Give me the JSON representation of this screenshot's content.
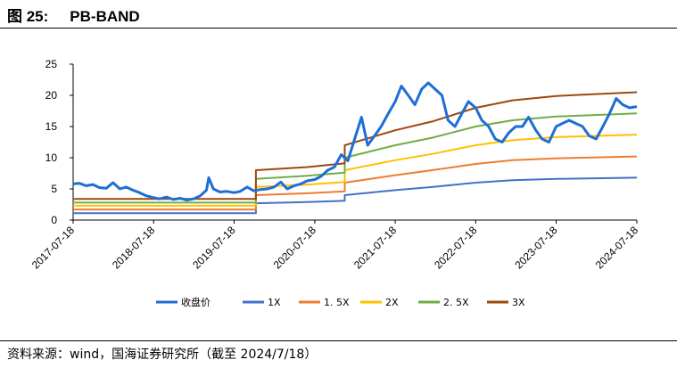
{
  "figure": {
    "label": "图 25:",
    "title": "PB-BAND",
    "source": "资料来源：wind，国海证券研究所（截至 2024/7/18）"
  },
  "chart_data": {
    "type": "line",
    "xlabel": "",
    "ylabel": "",
    "ylim": [
      0,
      25
    ],
    "yticks": [
      0,
      5,
      10,
      15,
      20,
      25
    ],
    "xlim": [
      "2017-07-18",
      "2024-07-18"
    ],
    "xticks": [
      "2017-07-18",
      "2018-07-18",
      "2019-07-18",
      "2020-07-18",
      "2021-07-18",
      "2022-07-18",
      "2023-07-18",
      "2024-07-18"
    ],
    "grid": false,
    "legend_position": "bottom",
    "series": [
      {
        "name": "收盘价",
        "color": "#1f6ed4",
        "width": 3,
        "points": [
          [
            "2017-07-18",
            5.8
          ],
          [
            "2017-08-15",
            5.9
          ],
          [
            "2017-09-15",
            5.5
          ],
          [
            "2017-10-15",
            5.7
          ],
          [
            "2017-11-15",
            5.2
          ],
          [
            "2017-12-15",
            5.1
          ],
          [
            "2018-01-15",
            6.0
          ],
          [
            "2018-02-15",
            5.0
          ],
          [
            "2018-03-15",
            5.3
          ],
          [
            "2018-04-15",
            4.8
          ],
          [
            "2018-05-15",
            4.4
          ],
          [
            "2018-06-15",
            3.9
          ],
          [
            "2018-07-18",
            3.6
          ],
          [
            "2018-08-15",
            3.4
          ],
          [
            "2018-09-15",
            3.7
          ],
          [
            "2018-10-15",
            3.3
          ],
          [
            "2018-11-15",
            3.5
          ],
          [
            "2018-12-15",
            3.2
          ],
          [
            "2019-01-15",
            3.4
          ],
          [
            "2019-02-15",
            3.9
          ],
          [
            "2019-03-15",
            4.8
          ],
          [
            "2019-03-25",
            6.8
          ],
          [
            "2019-04-15",
            5.0
          ],
          [
            "2019-05-15",
            4.5
          ],
          [
            "2019-06-15",
            4.6
          ],
          [
            "2019-07-18",
            4.4
          ],
          [
            "2019-08-15",
            4.6
          ],
          [
            "2019-09-15",
            5.3
          ],
          [
            "2019-10-15",
            4.7
          ],
          [
            "2019-11-15",
            4.9
          ],
          [
            "2019-12-15",
            5.0
          ],
          [
            "2020-01-15",
            5.3
          ],
          [
            "2020-02-15",
            6.1
          ],
          [
            "2020-03-15",
            5.0
          ],
          [
            "2020-04-15",
            5.5
          ],
          [
            "2020-05-15",
            5.8
          ],
          [
            "2020-06-15",
            6.3
          ],
          [
            "2020-07-18",
            6.5
          ],
          [
            "2020-08-15",
            7.0
          ],
          [
            "2020-09-15",
            8.0
          ],
          [
            "2020-10-15",
            8.5
          ],
          [
            "2020-11-15",
            10.5
          ],
          [
            "2020-12-15",
            9.5
          ],
          [
            "2021-01-15",
            13.0
          ],
          [
            "2021-02-15",
            16.5
          ],
          [
            "2021-03-15",
            12.0
          ],
          [
            "2021-04-15",
            13.5
          ],
          [
            "2021-05-15",
            15.0
          ],
          [
            "2021-06-15",
            17.0
          ],
          [
            "2021-07-18",
            19.0
          ],
          [
            "2021-08-15",
            21.5
          ],
          [
            "2021-09-15",
            20.0
          ],
          [
            "2021-10-15",
            18.5
          ],
          [
            "2021-11-15",
            21.0
          ],
          [
            "2021-12-15",
            22.0
          ],
          [
            "2022-01-15",
            21.0
          ],
          [
            "2022-02-15",
            20.0
          ],
          [
            "2022-03-15",
            16.0
          ],
          [
            "2022-04-15",
            15.0
          ],
          [
            "2022-05-15",
            17.0
          ],
          [
            "2022-06-15",
            19.0
          ],
          [
            "2022-07-18",
            18.0
          ],
          [
            "2022-08-15",
            16.0
          ],
          [
            "2022-09-15",
            15.0
          ],
          [
            "2022-10-15",
            13.0
          ],
          [
            "2022-11-15",
            12.5
          ],
          [
            "2022-12-15",
            14.0
          ],
          [
            "2023-01-15",
            15.0
          ],
          [
            "2023-02-15",
            15.0
          ],
          [
            "2023-03-15",
            16.5
          ],
          [
            "2023-04-15",
            14.5
          ],
          [
            "2023-05-15",
            13.0
          ],
          [
            "2023-06-15",
            12.5
          ],
          [
            "2023-07-18",
            15.0
          ],
          [
            "2023-08-15",
            15.5
          ],
          [
            "2023-09-15",
            16.0
          ],
          [
            "2023-10-15",
            15.5
          ],
          [
            "2023-11-15",
            15.0
          ],
          [
            "2023-12-15",
            13.5
          ],
          [
            "2024-01-15",
            13.0
          ],
          [
            "2024-02-15",
            15.0
          ],
          [
            "2024-03-15",
            17.0
          ],
          [
            "2024-04-15",
            19.5
          ],
          [
            "2024-05-15",
            18.5
          ],
          [
            "2024-06-15",
            18.0
          ],
          [
            "2024-07-18",
            18.2
          ]
        ]
      },
      {
        "name": "1X",
        "color": "#4472c4",
        "width": 2,
        "points": [
          [
            "2017-07-18",
            1.1
          ],
          [
            "2019-10-25",
            1.1
          ],
          [
            "2019-10-25",
            2.7
          ],
          [
            "2020-06-15",
            2.9
          ],
          [
            "2020-12-01",
            3.1
          ],
          [
            "2020-12-01",
            4.0
          ],
          [
            "2021-07-18",
            4.8
          ],
          [
            "2022-01-01",
            5.3
          ],
          [
            "2022-07-18",
            6.0
          ],
          [
            "2023-01-01",
            6.4
          ],
          [
            "2023-07-18",
            6.6
          ],
          [
            "2024-07-18",
            6.8
          ]
        ]
      },
      {
        "name": "1. 5X",
        "color": "#ed7d31",
        "width": 2,
        "points": [
          [
            "2017-07-18",
            1.7
          ],
          [
            "2019-10-25",
            1.7
          ],
          [
            "2019-10-25",
            4.0
          ],
          [
            "2020-06-15",
            4.3
          ],
          [
            "2020-12-01",
            4.6
          ],
          [
            "2020-12-01",
            6.0
          ],
          [
            "2021-07-18",
            7.2
          ],
          [
            "2022-01-01",
            8.0
          ],
          [
            "2022-07-18",
            9.0
          ],
          [
            "2023-01-01",
            9.6
          ],
          [
            "2023-07-18",
            9.9
          ],
          [
            "2024-07-18",
            10.2
          ]
        ]
      },
      {
        "name": "2X",
        "color": "#ffc000",
        "width": 2,
        "points": [
          [
            "2017-07-18",
            2.3
          ],
          [
            "2019-10-25",
            2.3
          ],
          [
            "2019-10-25",
            5.3
          ],
          [
            "2020-06-15",
            5.7
          ],
          [
            "2020-12-01",
            6.1
          ],
          [
            "2020-12-01",
            8.0
          ],
          [
            "2021-07-18",
            9.6
          ],
          [
            "2022-01-01",
            10.6
          ],
          [
            "2022-07-18",
            12.0
          ],
          [
            "2023-01-01",
            12.8
          ],
          [
            "2023-07-18",
            13.3
          ],
          [
            "2024-07-18",
            13.7
          ]
        ]
      },
      {
        "name": "2. 5X",
        "color": "#70ad47",
        "width": 2,
        "points": [
          [
            "2017-07-18",
            2.8
          ],
          [
            "2019-10-25",
            2.8
          ],
          [
            "2019-10-25",
            6.6
          ],
          [
            "2020-06-15",
            7.1
          ],
          [
            "2020-12-01",
            7.6
          ],
          [
            "2020-12-01",
            10.0
          ],
          [
            "2021-07-18",
            12.0
          ],
          [
            "2022-01-01",
            13.2
          ],
          [
            "2022-07-18",
            15.0
          ],
          [
            "2023-01-01",
            16.0
          ],
          [
            "2023-07-18",
            16.6
          ],
          [
            "2024-07-18",
            17.1
          ]
        ]
      },
      {
        "name": "3X",
        "color": "#9e480e",
        "width": 2,
        "points": [
          [
            "2017-07-18",
            3.4
          ],
          [
            "2019-10-25",
            3.4
          ],
          [
            "2019-10-25",
            8.0
          ],
          [
            "2020-06-15",
            8.5
          ],
          [
            "2020-12-01",
            9.1
          ],
          [
            "2020-12-01",
            12.0
          ],
          [
            "2021-07-18",
            14.4
          ],
          [
            "2022-01-01",
            15.8
          ],
          [
            "2022-07-18",
            18.0
          ],
          [
            "2023-01-01",
            19.2
          ],
          [
            "2023-07-18",
            19.9
          ],
          [
            "2024-07-18",
            20.5
          ]
        ]
      }
    ]
  }
}
